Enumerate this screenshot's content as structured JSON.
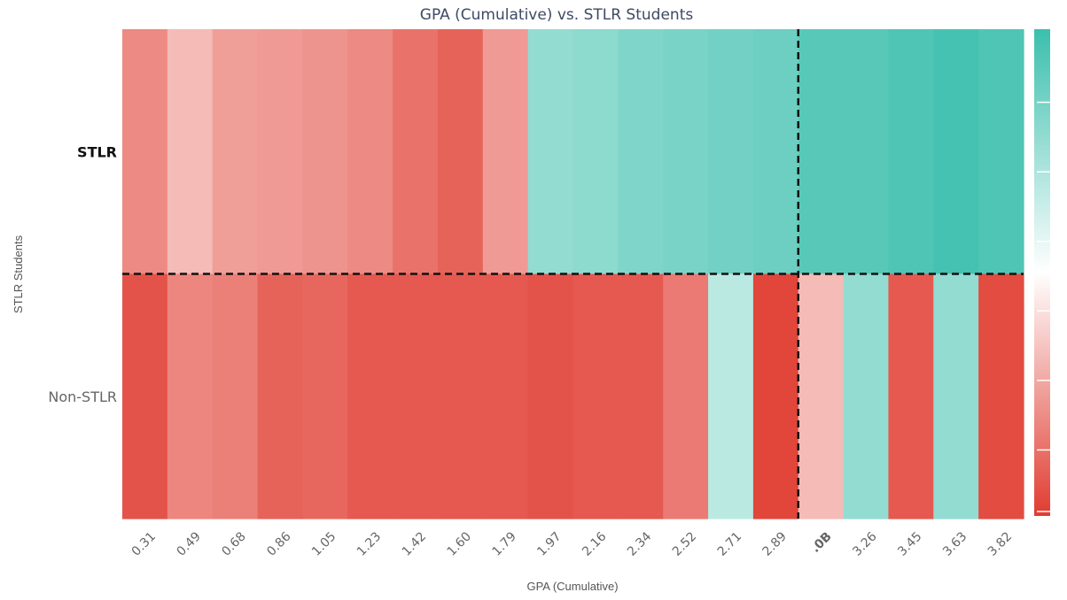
{
  "chart_data": {
    "type": "heatmap",
    "title": "GPA (Cumulative) vs. STLR Students",
    "xlabel": "GPA (Cumulative)",
    "ylabel": "STLR Students",
    "x_categories": [
      "0.31",
      "0.49",
      "0.68",
      "0.86",
      "1.05",
      "1.23",
      "1.42",
      "1.60",
      "1.79",
      "1.97",
      "2.16",
      "2.34",
      "2.52",
      "2.71",
      "2.89",
      ".0B",
      "3.26",
      "3.45",
      "3.63",
      "3.82"
    ],
    "y_categories": [
      "STLR",
      "Non-STLR"
    ],
    "values": [
      [
        -0.6,
        -0.35,
        -0.5,
        -0.52,
        -0.55,
        -0.6,
        -0.72,
        -0.8,
        -0.52,
        0.55,
        0.58,
        0.65,
        0.68,
        0.72,
        0.75,
        0.85,
        0.85,
        0.9,
        0.95,
        0.9
      ],
      [
        -0.88,
        -0.62,
        -0.65,
        -0.8,
        -0.78,
        -0.85,
        -0.85,
        -0.85,
        -0.85,
        -0.88,
        -0.85,
        -0.85,
        -0.68,
        0.35,
        -0.95,
        -0.35,
        0.55,
        -0.85,
        0.55,
        -0.92
      ]
    ],
    "colorscale": {
      "negative": "#e03c31",
      "neutral": "#ffffff",
      "positive": "#3bbfad"
    },
    "color_range": [
      -1,
      1
    ],
    "crosshair": {
      "x_category": ".0B",
      "y_between": [
        "STLR",
        "Non-STLR"
      ]
    },
    "legend": "right"
  }
}
